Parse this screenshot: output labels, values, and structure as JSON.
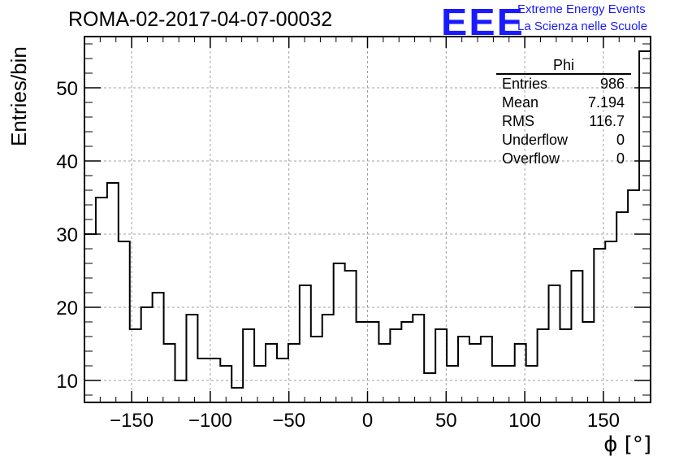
{
  "chart_data": {
    "type": "histogram",
    "title": "ROMA-02-2017-04-07-00032",
    "xlabel": "ϕ [°]",
    "ylabel": "Entries/bin",
    "xlim": [
      -180,
      180
    ],
    "ylim": [
      7,
      57
    ],
    "grid": true,
    "bin_width": 7.2,
    "x_ticks": [
      -150,
      -100,
      -50,
      0,
      50,
      100,
      150
    ],
    "x_tick_labels": [
      "−150",
      "−100",
      "−50",
      "0",
      "50",
      "100",
      "150"
    ],
    "y_ticks": [
      10,
      20,
      30,
      40,
      50
    ],
    "y_tick_labels": [
      "10",
      "20",
      "30",
      "40",
      "50"
    ],
    "values": [
      30,
      35,
      37,
      29,
      17,
      20,
      22,
      15,
      10,
      19,
      13,
      13,
      12,
      9,
      17,
      12,
      15,
      13,
      15,
      23,
      16,
      19,
      26,
      25,
      18,
      18,
      15,
      17,
      18,
      19,
      11,
      17,
      12,
      16,
      15,
      16,
      12,
      12,
      15,
      12,
      17,
      23,
      17,
      25,
      18,
      28,
      29,
      33,
      36,
      55
    ],
    "stats_box": {
      "name": "Phi",
      "rows": [
        {
          "label": "Entries",
          "value": "986"
        },
        {
          "label": "Mean",
          "value": "7.194"
        },
        {
          "label": "RMS",
          "value": "116.7"
        },
        {
          "label": "Underflow",
          "value": "0"
        },
        {
          "label": "Overflow",
          "value": "0"
        }
      ]
    }
  },
  "logo": {
    "mark": "EEE",
    "line1": "Extreme Energy Events",
    "line2": "La Scienza nelle Scuole",
    "color": "#1a1aff"
  }
}
